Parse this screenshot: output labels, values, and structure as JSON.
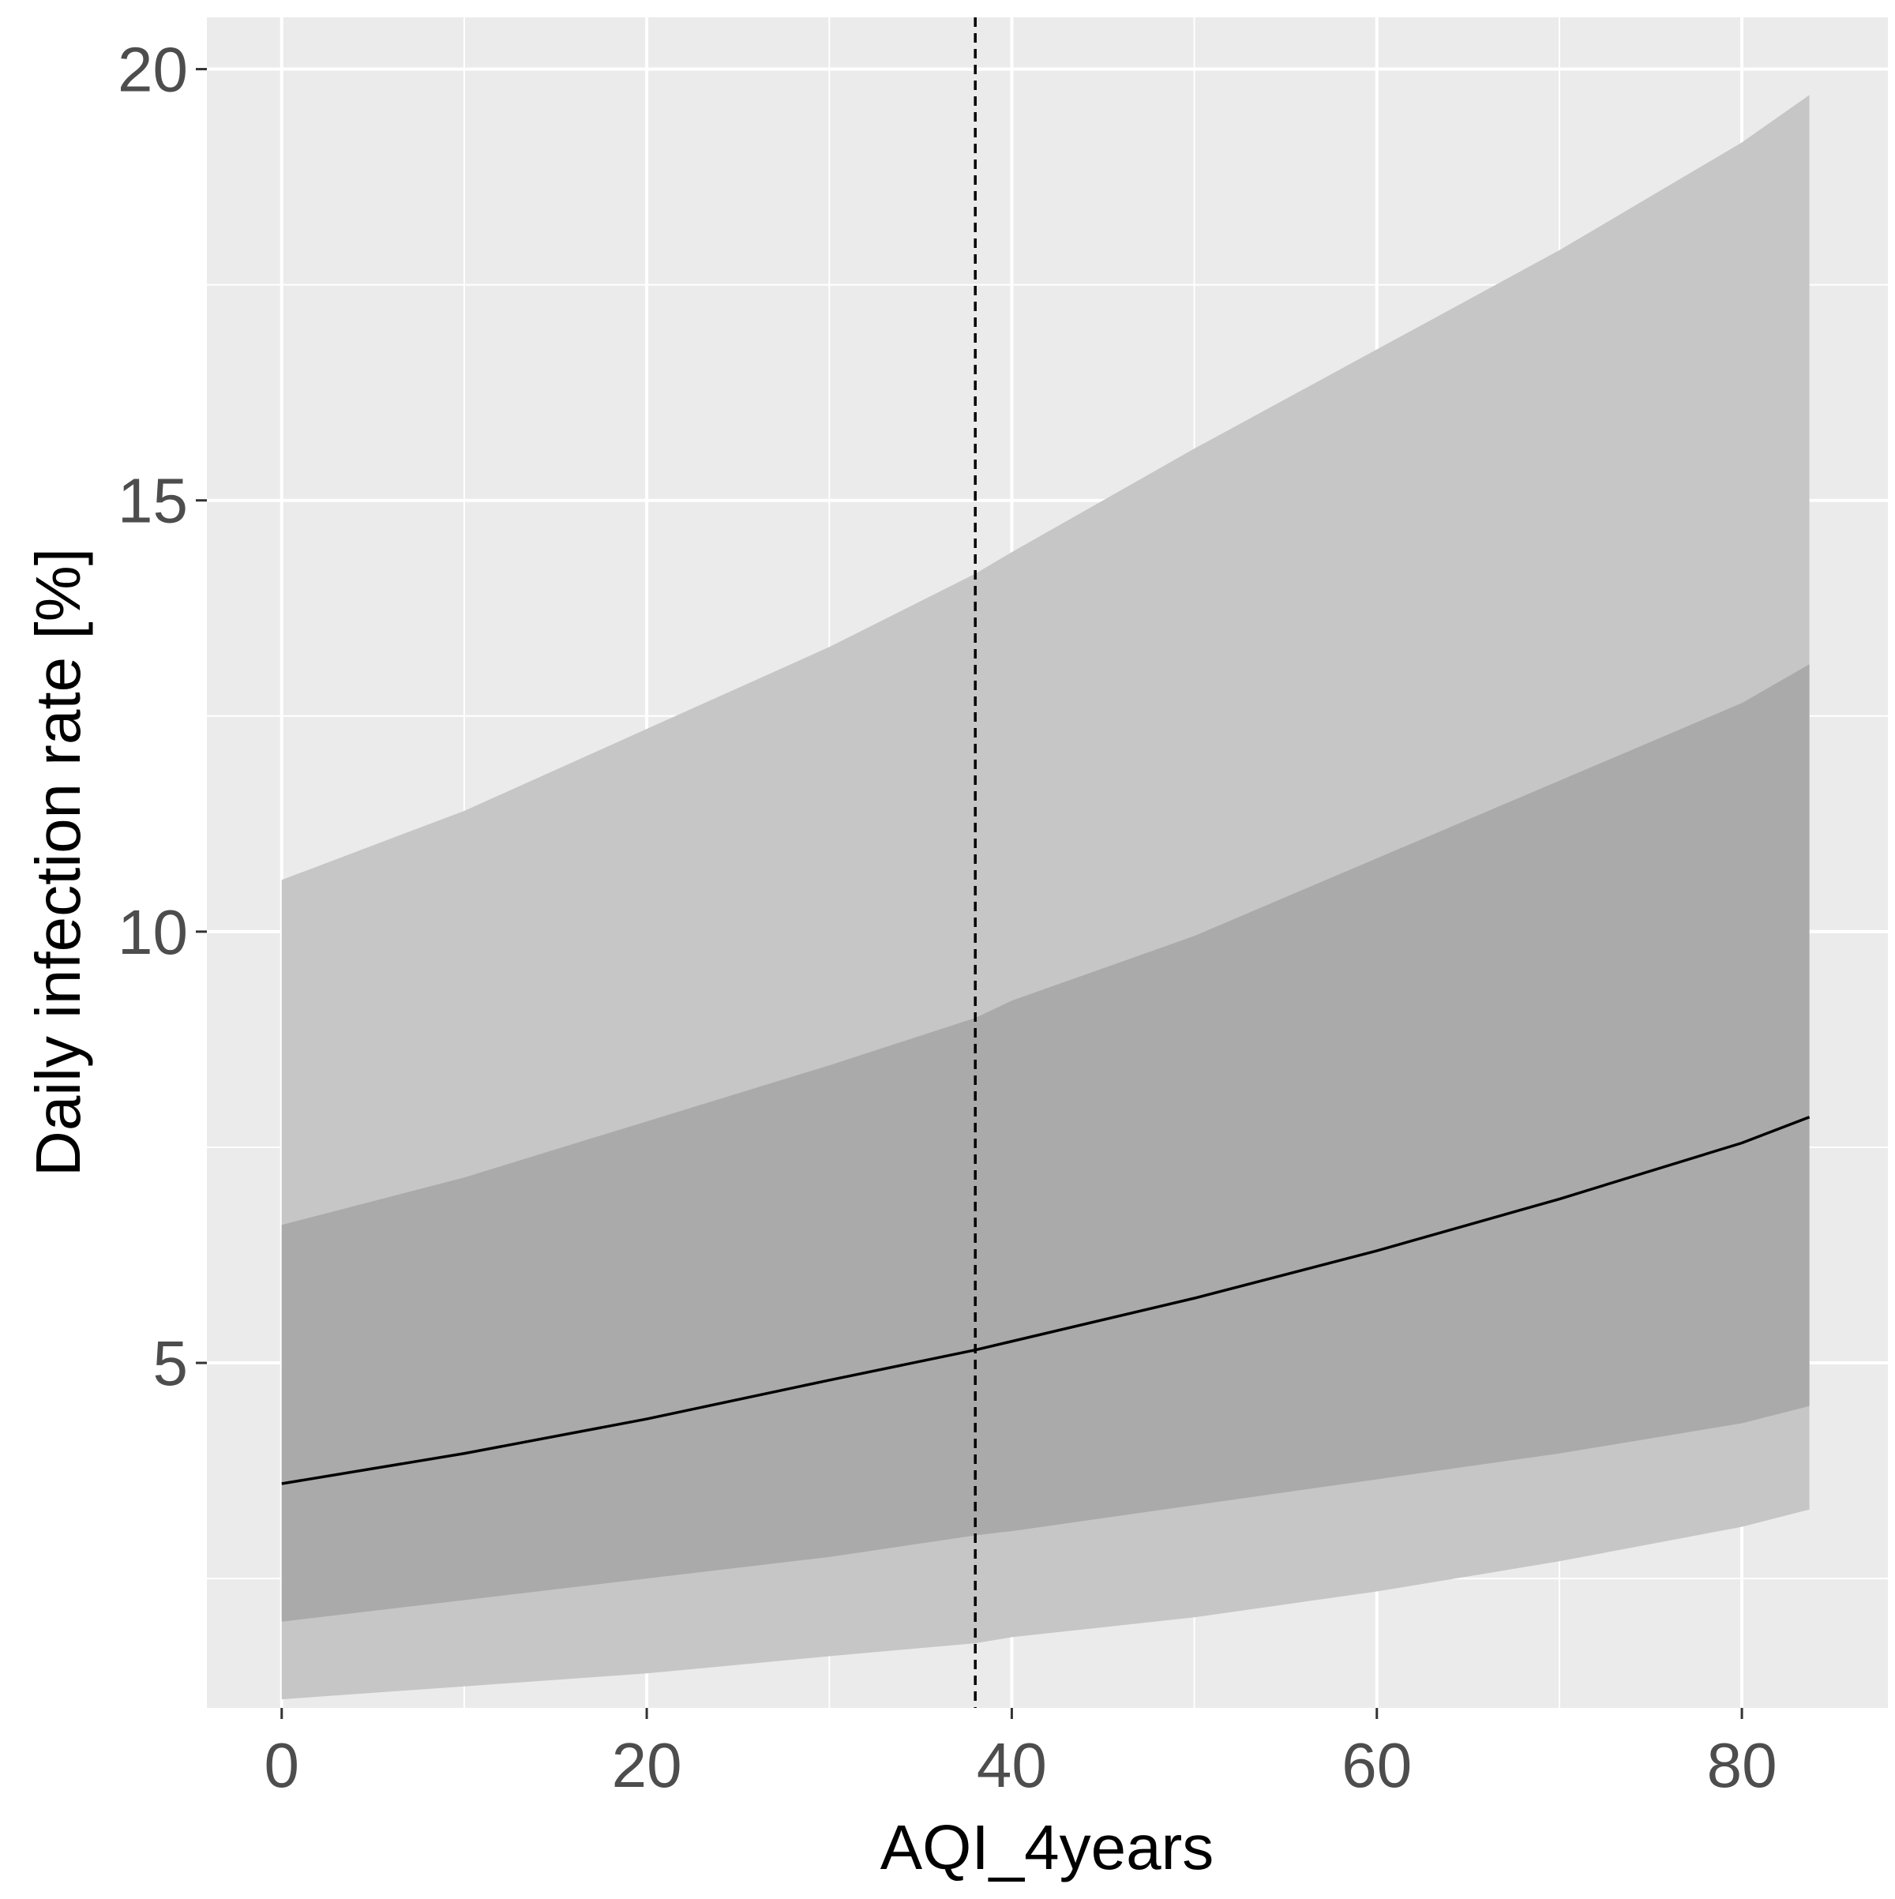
{
  "chart_data": {
    "type": "line",
    "xlabel": "AQI_4years",
    "ylabel": "Daily infection rate [%]",
    "xlim": [
      -4.1,
      88
    ],
    "ylim": [
      1.0,
      20.6
    ],
    "x_ticks": [
      0,
      20,
      40,
      60,
      80
    ],
    "y_ticks": [
      5,
      10,
      15,
      20
    ],
    "x_minor_ticks": [
      10,
      30,
      50,
      70
    ],
    "y_minor_ticks": [
      2.5,
      7.5,
      12.5,
      17.5
    ],
    "grid": true,
    "vline": {
      "x": 38,
      "style": "dashed"
    },
    "x": [
      0,
      10,
      20,
      30,
      38,
      40,
      50,
      60,
      70,
      80,
      83.7
    ],
    "series": [
      {
        "role": "band",
        "level": "outer",
        "lower": [
          1.1,
          1.25,
          1.4,
          1.6,
          1.75,
          1.82,
          2.05,
          2.35,
          2.7,
          3.1,
          3.3
        ],
        "upper": [
          10.6,
          11.4,
          12.35,
          13.3,
          14.15,
          14.4,
          15.6,
          16.75,
          17.9,
          19.15,
          19.7
        ]
      },
      {
        "role": "band",
        "level": "inner",
        "lower": [
          2.0,
          2.25,
          2.5,
          2.75,
          3.0,
          3.05,
          3.35,
          3.65,
          3.95,
          4.3,
          4.5
        ],
        "upper": [
          6.6,
          7.15,
          7.8,
          8.45,
          9.0,
          9.2,
          9.95,
          10.85,
          11.75,
          12.65,
          13.1
        ]
      },
      {
        "role": "line",
        "values": [
          3.6,
          3.95,
          4.35,
          4.8,
          5.15,
          5.25,
          5.75,
          6.3,
          6.9,
          7.55,
          7.85
        ]
      }
    ],
    "colors": {
      "panel": "#ebebeb",
      "grid": "#ffffff",
      "outer_band": "#c6c6c6",
      "inner_band": "#aaaaaa",
      "line": "#000000",
      "tick_text": "#4d4d4d",
      "axis_title": "#000000"
    }
  }
}
